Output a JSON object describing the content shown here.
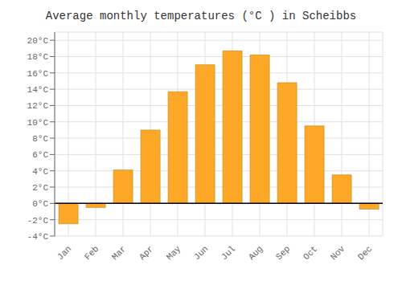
{
  "chart_data": {
    "type": "bar",
    "title": "Average monthly temperatures (°C ) in Scheibbs",
    "categories": [
      "Jan",
      "Feb",
      "Mar",
      "Apr",
      "May",
      "Jun",
      "Jul",
      "Aug",
      "Sep",
      "Oct",
      "Nov",
      "Dec"
    ],
    "values": [
      -2.5,
      -0.5,
      4.1,
      9.0,
      13.7,
      17.0,
      18.7,
      18.2,
      14.8,
      9.5,
      3.5,
      -0.7
    ],
    "color": "#FFA726",
    "ylim": [
      -4,
      21
    ],
    "yticks": [
      {
        "value": -4,
        "label": "-4°C"
      },
      {
        "value": -2,
        "label": "-2°C"
      },
      {
        "value": 0,
        "label": "0°C"
      },
      {
        "value": 2,
        "label": "2°C"
      },
      {
        "value": 4,
        "label": "4°C"
      },
      {
        "value": 6,
        "label": "6°C"
      },
      {
        "value": 8,
        "label": "8°C"
      },
      {
        "value": 10,
        "label": "10°C"
      },
      {
        "value": 12,
        "label": "12°C"
      },
      {
        "value": 14,
        "label": "14°C"
      },
      {
        "value": 16,
        "label": "16°C"
      },
      {
        "value": 18,
        "label": "18°C"
      },
      {
        "value": 20,
        "label": "20°C"
      }
    ],
    "grid": true
  }
}
